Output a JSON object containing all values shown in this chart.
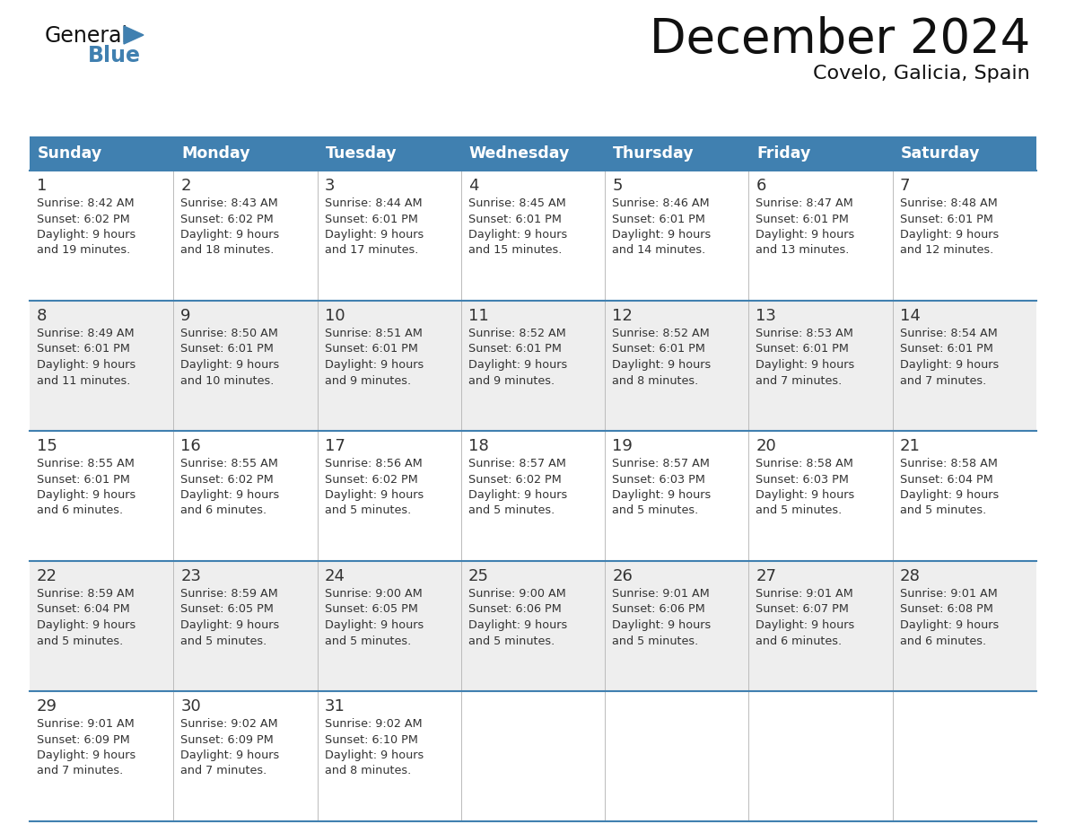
{
  "title": "December 2024",
  "subtitle": "Covelo, Galicia, Spain",
  "header_color": "#4080B0",
  "header_text_color": "#FFFFFF",
  "days_of_week": [
    "Sunday",
    "Monday",
    "Tuesday",
    "Wednesday",
    "Thursday",
    "Friday",
    "Saturday"
  ],
  "background_color": "#FFFFFF",
  "cell_bg_even": "#FFFFFF",
  "cell_bg_odd": "#EEEEEE",
  "border_color": "#4080B0",
  "text_color": "#333333",
  "title_color": "#111111",
  "logo_color_general": "#111111",
  "logo_color_blue": "#4080B0",
  "logo_triangle_color": "#4080B0",
  "calendar_data": [
    [
      {
        "day": 1,
        "sunrise": "8:42 AM",
        "sunset": "6:02 PM",
        "daylight_hours": 9,
        "daylight_minutes": 19
      },
      {
        "day": 2,
        "sunrise": "8:43 AM",
        "sunset": "6:02 PM",
        "daylight_hours": 9,
        "daylight_minutes": 18
      },
      {
        "day": 3,
        "sunrise": "8:44 AM",
        "sunset": "6:01 PM",
        "daylight_hours": 9,
        "daylight_minutes": 17
      },
      {
        "day": 4,
        "sunrise": "8:45 AM",
        "sunset": "6:01 PM",
        "daylight_hours": 9,
        "daylight_minutes": 15
      },
      {
        "day": 5,
        "sunrise": "8:46 AM",
        "sunset": "6:01 PM",
        "daylight_hours": 9,
        "daylight_minutes": 14
      },
      {
        "day": 6,
        "sunrise": "8:47 AM",
        "sunset": "6:01 PM",
        "daylight_hours": 9,
        "daylight_minutes": 13
      },
      {
        "day": 7,
        "sunrise": "8:48 AM",
        "sunset": "6:01 PM",
        "daylight_hours": 9,
        "daylight_minutes": 12
      }
    ],
    [
      {
        "day": 8,
        "sunrise": "8:49 AM",
        "sunset": "6:01 PM",
        "daylight_hours": 9,
        "daylight_minutes": 11
      },
      {
        "day": 9,
        "sunrise": "8:50 AM",
        "sunset": "6:01 PM",
        "daylight_hours": 9,
        "daylight_minutes": 10
      },
      {
        "day": 10,
        "sunrise": "8:51 AM",
        "sunset": "6:01 PM",
        "daylight_hours": 9,
        "daylight_minutes": 9
      },
      {
        "day": 11,
        "sunrise": "8:52 AM",
        "sunset": "6:01 PM",
        "daylight_hours": 9,
        "daylight_minutes": 9
      },
      {
        "day": 12,
        "sunrise": "8:52 AM",
        "sunset": "6:01 PM",
        "daylight_hours": 9,
        "daylight_minutes": 8
      },
      {
        "day": 13,
        "sunrise": "8:53 AM",
        "sunset": "6:01 PM",
        "daylight_hours": 9,
        "daylight_minutes": 7
      },
      {
        "day": 14,
        "sunrise": "8:54 AM",
        "sunset": "6:01 PM",
        "daylight_hours": 9,
        "daylight_minutes": 7
      }
    ],
    [
      {
        "day": 15,
        "sunrise": "8:55 AM",
        "sunset": "6:01 PM",
        "daylight_hours": 9,
        "daylight_minutes": 6
      },
      {
        "day": 16,
        "sunrise": "8:55 AM",
        "sunset": "6:02 PM",
        "daylight_hours": 9,
        "daylight_minutes": 6
      },
      {
        "day": 17,
        "sunrise": "8:56 AM",
        "sunset": "6:02 PM",
        "daylight_hours": 9,
        "daylight_minutes": 5
      },
      {
        "day": 18,
        "sunrise": "8:57 AM",
        "sunset": "6:02 PM",
        "daylight_hours": 9,
        "daylight_minutes": 5
      },
      {
        "day": 19,
        "sunrise": "8:57 AM",
        "sunset": "6:03 PM",
        "daylight_hours": 9,
        "daylight_minutes": 5
      },
      {
        "day": 20,
        "sunrise": "8:58 AM",
        "sunset": "6:03 PM",
        "daylight_hours": 9,
        "daylight_minutes": 5
      },
      {
        "day": 21,
        "sunrise": "8:58 AM",
        "sunset": "6:04 PM",
        "daylight_hours": 9,
        "daylight_minutes": 5
      }
    ],
    [
      {
        "day": 22,
        "sunrise": "8:59 AM",
        "sunset": "6:04 PM",
        "daylight_hours": 9,
        "daylight_minutes": 5
      },
      {
        "day": 23,
        "sunrise": "8:59 AM",
        "sunset": "6:05 PM",
        "daylight_hours": 9,
        "daylight_minutes": 5
      },
      {
        "day": 24,
        "sunrise": "9:00 AM",
        "sunset": "6:05 PM",
        "daylight_hours": 9,
        "daylight_minutes": 5
      },
      {
        "day": 25,
        "sunrise": "9:00 AM",
        "sunset": "6:06 PM",
        "daylight_hours": 9,
        "daylight_minutes": 5
      },
      {
        "day": 26,
        "sunrise": "9:01 AM",
        "sunset": "6:06 PM",
        "daylight_hours": 9,
        "daylight_minutes": 5
      },
      {
        "day": 27,
        "sunrise": "9:01 AM",
        "sunset": "6:07 PM",
        "daylight_hours": 9,
        "daylight_minutes": 6
      },
      {
        "day": 28,
        "sunrise": "9:01 AM",
        "sunset": "6:08 PM",
        "daylight_hours": 9,
        "daylight_minutes": 6
      }
    ],
    [
      {
        "day": 29,
        "sunrise": "9:01 AM",
        "sunset": "6:09 PM",
        "daylight_hours": 9,
        "daylight_minutes": 7
      },
      {
        "day": 30,
        "sunrise": "9:02 AM",
        "sunset": "6:09 PM",
        "daylight_hours": 9,
        "daylight_minutes": 7
      },
      {
        "day": 31,
        "sunrise": "9:02 AM",
        "sunset": "6:10 PM",
        "daylight_hours": 9,
        "daylight_minutes": 8
      },
      null,
      null,
      null,
      null
    ]
  ]
}
